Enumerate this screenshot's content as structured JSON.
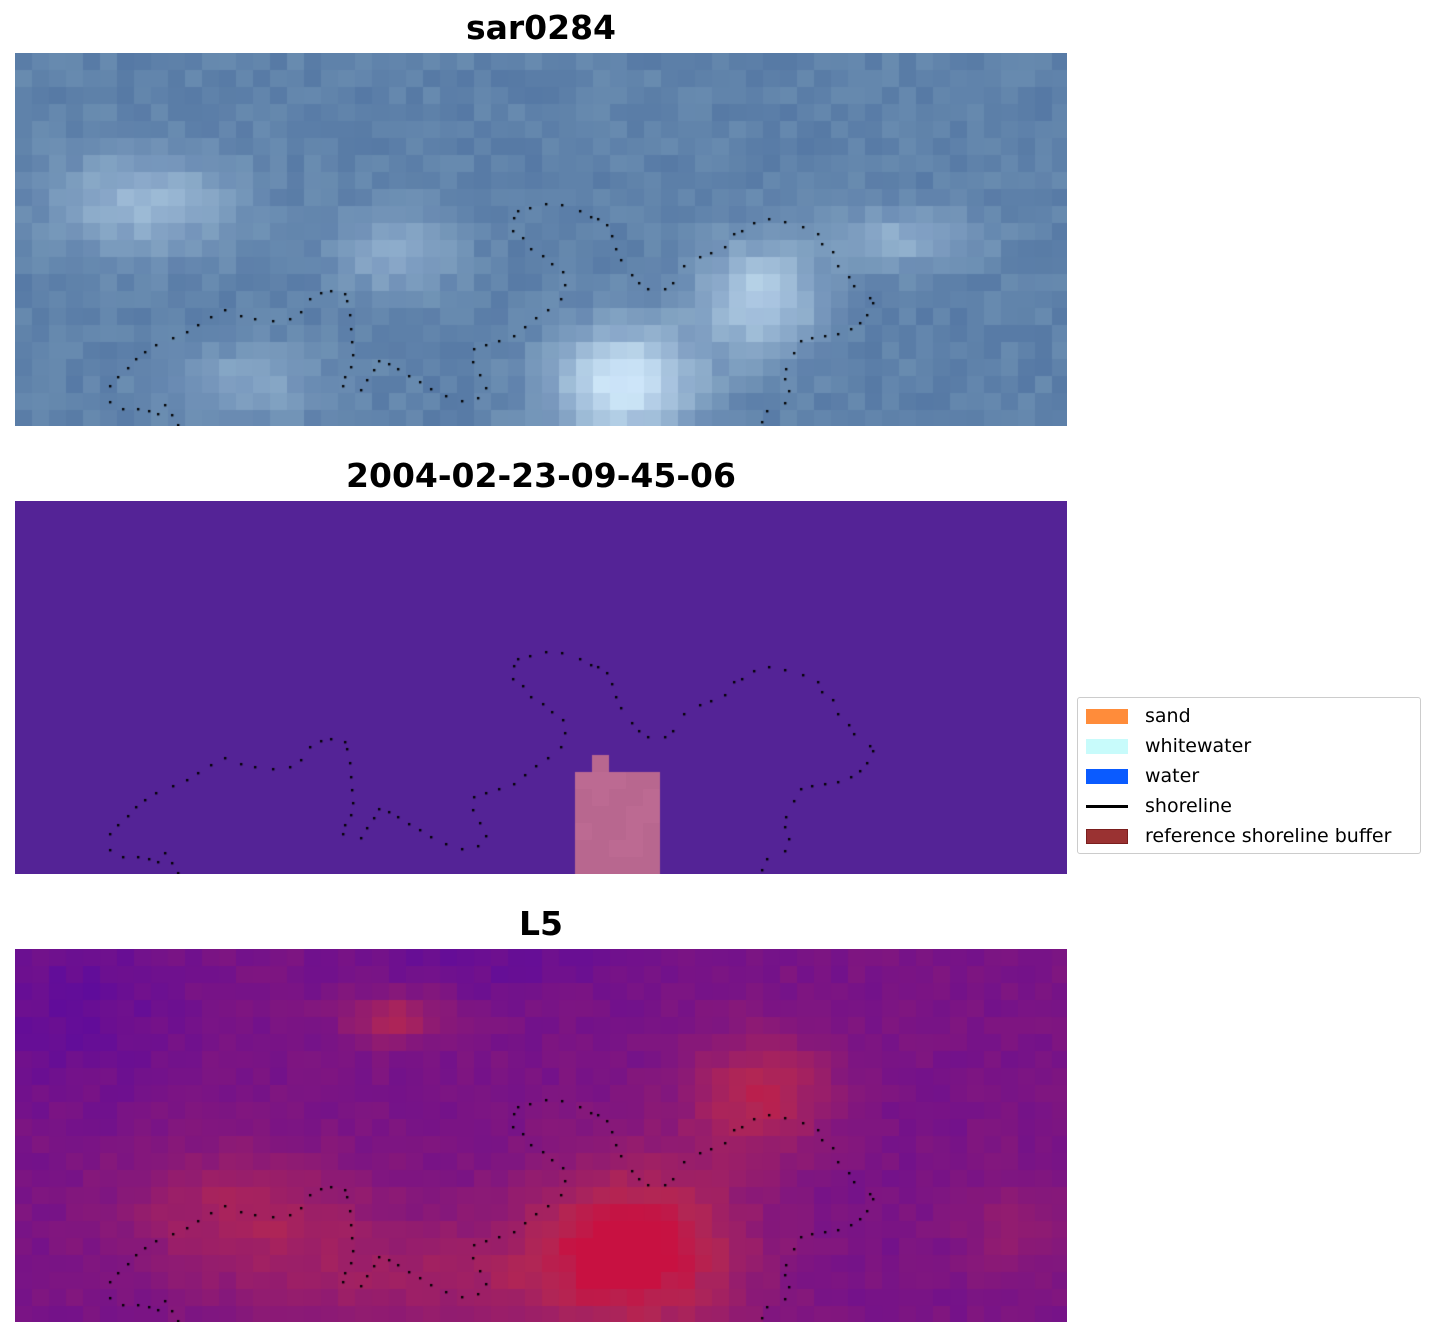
{
  "panels": [
    {
      "title": "sar0284",
      "style": "rgb"
    },
    {
      "title": "2004-02-23-09-45-06",
      "style": "classified"
    },
    {
      "title": "L5",
      "style": "index"
    }
  ],
  "legend": {
    "items": [
      {
        "label": "sand",
        "color": "#ff8c3a",
        "kind": "patch"
      },
      {
        "label": "whitewater",
        "color": "#c8fbfb",
        "kind": "patch"
      },
      {
        "label": "water",
        "color": "#0a5bff",
        "kind": "patch"
      },
      {
        "label": "shoreline",
        "color": "#000000",
        "kind": "line"
      },
      {
        "label": "reference shoreline buffer",
        "color": "#9a3232",
        "kind": "patch"
      }
    ]
  },
  "colors": {
    "classified_background": "#542396",
    "classified_buffer": "#b8678f",
    "shoreline_dots": "#000000"
  }
}
